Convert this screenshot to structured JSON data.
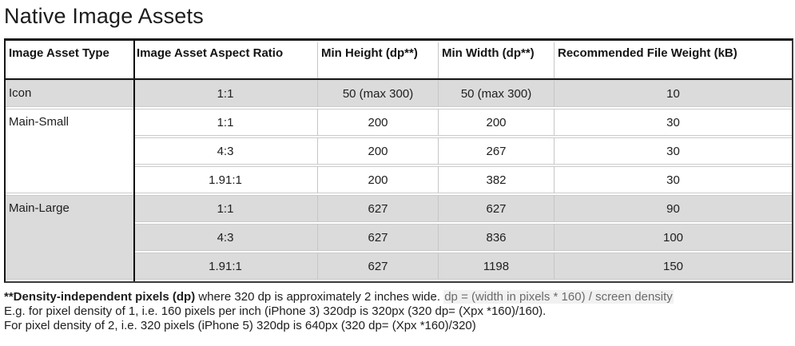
{
  "page": {
    "title": "Native Image Assets"
  },
  "table": {
    "columns": [
      "Image Asset Type",
      "Image Asset Aspect Ratio",
      "Min Height (dp**)",
      "Min Width (dp**)",
      "Recommended File Weight (kB)"
    ],
    "groups": [
      {
        "type": "Icon",
        "shaded": true,
        "rows": [
          [
            "1:1",
            "50 (max 300)",
            "50 (max 300)",
            "10"
          ]
        ]
      },
      {
        "type": "Main-Small",
        "shaded": false,
        "rows": [
          [
            "1:1",
            "200",
            "200",
            "30"
          ],
          [
            "4:3",
            "200",
            "267",
            "30"
          ],
          [
            "1.91:1",
            "200",
            "382",
            "30"
          ]
        ]
      },
      {
        "type": "Main-Large",
        "shaded": true,
        "rows": [
          [
            "1:1",
            "627",
            "627",
            "90"
          ],
          [
            "4:3",
            "627",
            "836",
            "100"
          ],
          [
            "1.91:1",
            "627",
            "1198",
            "150"
          ]
        ]
      }
    ]
  },
  "footnote": {
    "line1_bold": "**Density-independent pixels (dp)",
    "line1_normal": " where 320 dp is approximately 2 inches wide. ",
    "line1_formula": "dp = (width in pixels * 160) / screen density",
    "line2": "E.g. for pixel density of 1, i.e. 160 pixels per inch (iPhone 3) 320dp is 320px (320 dp= (Xpx *160)/160).",
    "line3": "For pixel density of 2, i.e. 320 pixels (iPhone 5) 320dp is 640px (320 dp= (Xpx *160)/320)"
  },
  "colors": {
    "row_shaded": "#dbdbdb",
    "border_dark": "#161616",
    "border_light": "#c6c6c6",
    "formula_text": "#6b6b6b",
    "formula_highlight": "#f1f1f1"
  }
}
